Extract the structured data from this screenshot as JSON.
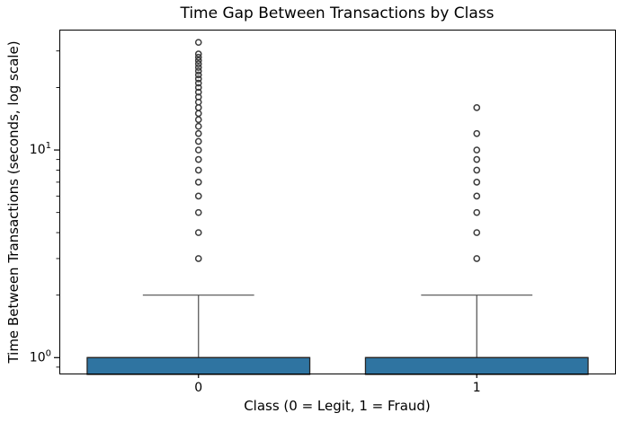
{
  "chart_data": {
    "type": "boxplot",
    "title": "Time Gap Between Transactions by Class",
    "xlabel": "Class (0 = Legit, 1 = Fraud)",
    "ylabel": "Time Between Transactions (seconds, log scale)",
    "yscale": "log",
    "ylim": [
      0.83,
      38
    ],
    "grid": false,
    "legend": null,
    "categories": [
      "0",
      "1"
    ],
    "y_major_ticks": [
      {
        "value": 1,
        "base": "10",
        "exponent": "0"
      },
      {
        "value": 10,
        "base": "10",
        "exponent": "1"
      }
    ],
    "y_minor_tick_values": [
      0.9,
      2,
      3,
      4,
      5,
      6,
      7,
      8,
      9,
      20,
      30
    ],
    "boxes": [
      {
        "category": "0",
        "name": "class-0-legit",
        "box_top": 1.0,
        "median": 1.0,
        "box_bottom": "clipped-at-axis-bottom",
        "whisker_high": 2.0,
        "fliers": [
          3,
          4,
          5,
          6,
          7,
          8,
          9,
          10,
          11,
          12,
          13,
          14,
          15,
          16,
          17,
          18,
          19,
          20,
          21,
          22,
          23,
          24,
          25,
          26,
          27,
          28,
          29,
          33
        ]
      },
      {
        "category": "1",
        "name": "class-1-fraud",
        "box_top": 1.0,
        "median": 1.0,
        "box_bottom": "clipped-at-axis-bottom",
        "whisker_high": 2.0,
        "fliers": [
          3,
          4,
          5,
          6,
          7,
          8,
          9,
          10,
          12,
          16
        ]
      }
    ],
    "colors": {
      "box_fill": "#2f74a1",
      "box_edge": "#262626",
      "whisker": "#4d4d4d",
      "flier_edge": "#3d3d3d",
      "axis": "#000000",
      "text": "#000000",
      "background": "#ffffff"
    }
  }
}
